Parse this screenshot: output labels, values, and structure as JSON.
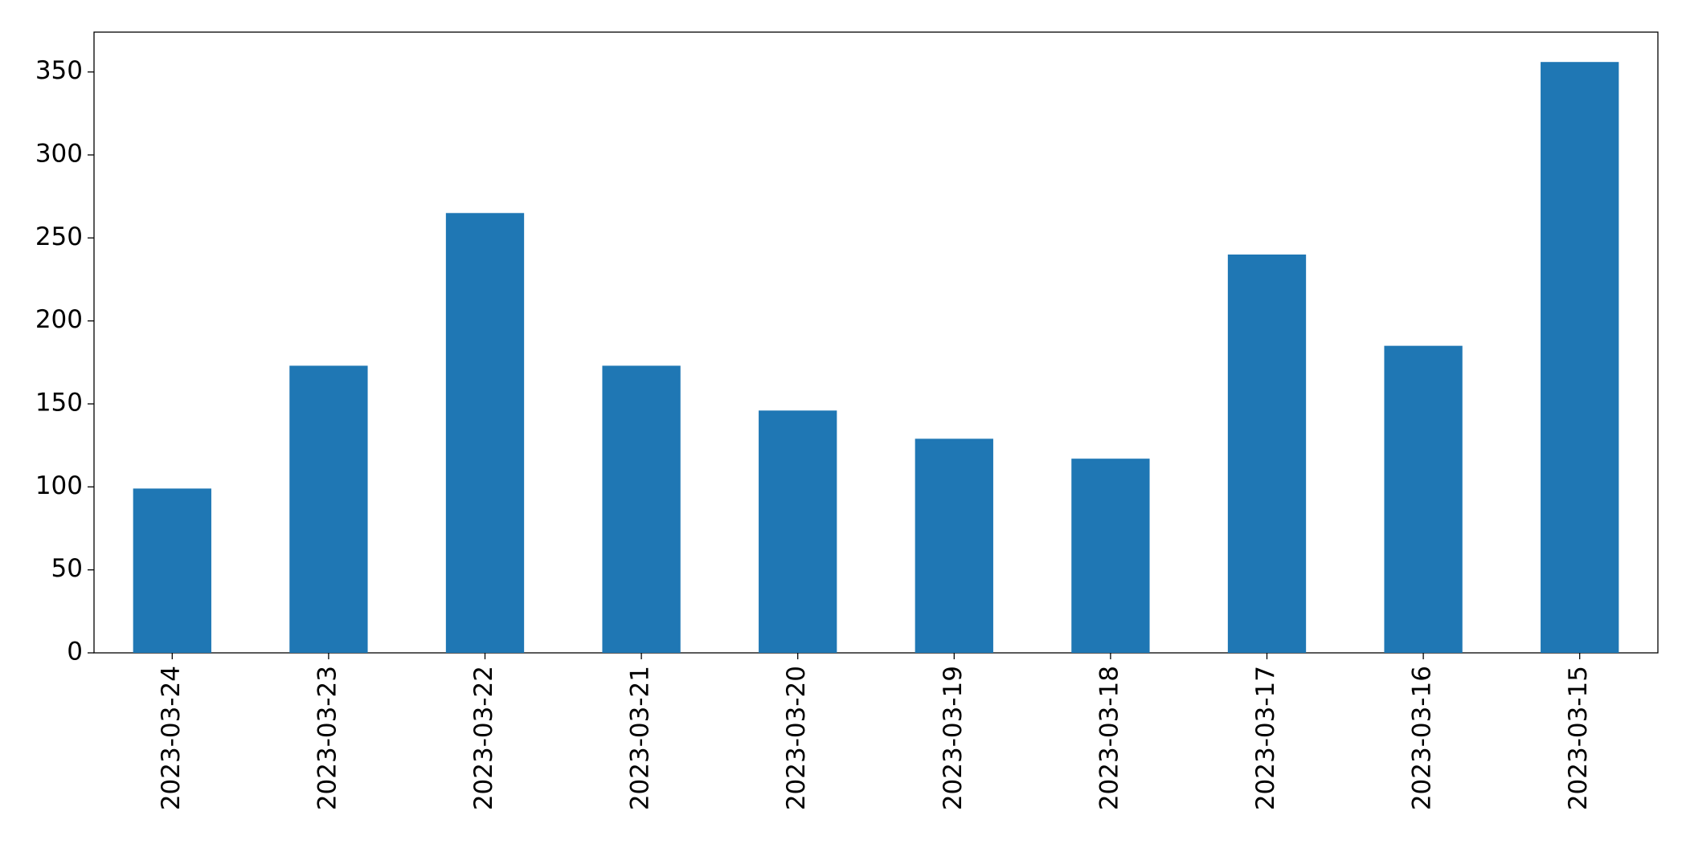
{
  "chart_data": {
    "type": "bar",
    "categories": [
      "2023-03-24",
      "2023-03-23",
      "2023-03-22",
      "2023-03-21",
      "2023-03-20",
      "2023-03-19",
      "2023-03-18",
      "2023-03-17",
      "2023-03-16",
      "2023-03-15"
    ],
    "values": [
      99,
      173,
      265,
      173,
      146,
      129,
      117,
      240,
      185,
      356
    ],
    "color": "#1f77b4",
    "ylim": [
      0,
      374
    ],
    "yticks": [
      0,
      50,
      100,
      150,
      200,
      250,
      300,
      350
    ],
    "grid": false
  }
}
